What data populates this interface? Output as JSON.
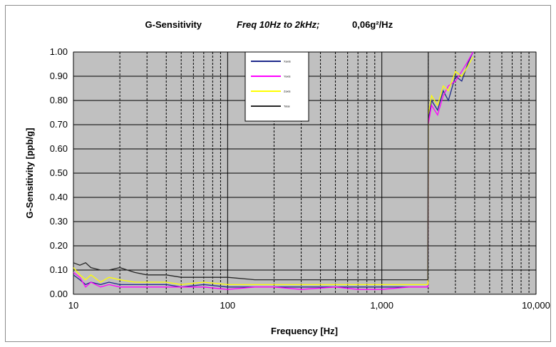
{
  "chart_data": {
    "type": "line",
    "title": "G-Sensitivity",
    "title_condition": "Freq 10Hz to 2kHz;",
    "title_level": "0,06g²/Hz",
    "xlabel": "Frequency [Hz]",
    "ylabel": "G-Sensitivity [ppb/g]",
    "x_scale": "log",
    "xlim": [
      10,
      10000
    ],
    "ylim": [
      0,
      1.0
    ],
    "x_ticks": [
      10,
      100,
      1000,
      10000
    ],
    "x_tick_labels": [
      "10",
      "100",
      "1,000",
      "10,000"
    ],
    "y_ticks": [
      0,
      0.1,
      0.2,
      0.3,
      0.4,
      0.5,
      0.6,
      0.7,
      0.8,
      0.9,
      1.0
    ],
    "y_tick_labels": [
      "0.00",
      "0.10",
      "0.20",
      "0.30",
      "0.40",
      "0.50",
      "0.60",
      "0.70",
      "0.80",
      "0.90",
      "1.00"
    ],
    "grid": true,
    "plot_background": "#c0c0c0",
    "legend_position": "top-center",
    "series": [
      {
        "name": "Xaxis",
        "color": "#1f2a8c",
        "x": [
          10,
          11,
          12,
          13,
          15,
          17,
          20,
          25,
          30,
          40,
          50,
          70,
          100,
          150,
          200,
          300,
          500,
          700,
          1000,
          1500,
          1990,
          2000,
          2100,
          2300,
          2500,
          2700,
          3000,
          3300,
          3600,
          3900
        ],
        "y": [
          0.08,
          0.06,
          0.04,
          0.05,
          0.04,
          0.05,
          0.04,
          0.04,
          0.04,
          0.04,
          0.03,
          0.04,
          0.03,
          0.03,
          0.03,
          0.03,
          0.03,
          0.03,
          0.03,
          0.03,
          0.03,
          0.72,
          0.8,
          0.76,
          0.84,
          0.8,
          0.9,
          0.88,
          0.95,
          1.0
        ]
      },
      {
        "name": "Yaxis",
        "color": "#ff00ff",
        "x": [
          10,
          11,
          12,
          13,
          15,
          17,
          20,
          25,
          30,
          40,
          50,
          70,
          100,
          150,
          200,
          300,
          500,
          700,
          1000,
          1500,
          1990,
          2000,
          2100,
          2300,
          2500,
          2700,
          3000,
          3300,
          3600,
          3900
        ],
        "y": [
          0.09,
          0.07,
          0.03,
          0.05,
          0.03,
          0.04,
          0.03,
          0.03,
          0.03,
          0.03,
          0.03,
          0.03,
          0.02,
          0.03,
          0.03,
          0.02,
          0.03,
          0.02,
          0.02,
          0.03,
          0.03,
          0.7,
          0.78,
          0.74,
          0.82,
          0.86,
          0.88,
          0.92,
          0.96,
          1.0
        ]
      },
      {
        "name": "Zaxis",
        "color": "#ffff00",
        "x": [
          10,
          11,
          12,
          13,
          15,
          17,
          20,
          25,
          30,
          40,
          50,
          70,
          100,
          150,
          200,
          300,
          500,
          700,
          1000,
          1500,
          1990,
          2000,
          2100,
          2300,
          2500,
          2700,
          3000,
          3300,
          3600,
          3900
        ],
        "y": [
          0.11,
          0.08,
          0.06,
          0.08,
          0.05,
          0.07,
          0.06,
          0.05,
          0.05,
          0.05,
          0.04,
          0.05,
          0.04,
          0.04,
          0.04,
          0.04,
          0.04,
          0.04,
          0.04,
          0.04,
          0.04,
          0.74,
          0.82,
          0.78,
          0.86,
          0.84,
          0.92,
          0.9,
          0.94,
          0.98
        ]
      },
      {
        "name": "Total",
        "color": "#262626",
        "x": [
          10,
          11,
          12,
          13,
          15,
          17,
          20,
          25,
          30,
          40,
          50,
          70,
          100,
          150,
          200,
          300,
          500,
          700,
          1000,
          1500,
          1990,
          2000
        ],
        "y": [
          0.13,
          0.12,
          0.13,
          0.11,
          0.1,
          0.1,
          0.11,
          0.09,
          0.08,
          0.08,
          0.07,
          0.07,
          0.07,
          0.06,
          0.06,
          0.06,
          0.06,
          0.06,
          0.06,
          0.06,
          0.06,
          1.0
        ]
      }
    ]
  }
}
